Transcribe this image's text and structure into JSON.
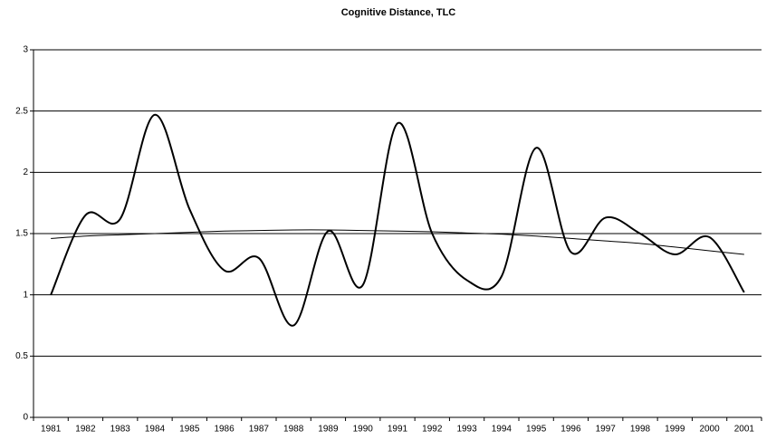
{
  "chart_data": {
    "type": "line",
    "title": "Cognitive Distance, TLC",
    "categories": [
      "1981",
      "1982",
      "1983",
      "1984",
      "1985",
      "1986",
      "1987",
      "1988",
      "1989",
      "1990",
      "1991",
      "1992",
      "1993",
      "1994",
      "1995",
      "1996",
      "1997",
      "1998",
      "1999",
      "2000",
      "2001"
    ],
    "series": [
      {
        "color": "#000000",
        "values": [
          1.0,
          1.65,
          1.62,
          2.47,
          1.7,
          1.2,
          1.3,
          0.75,
          1.52,
          1.08,
          2.4,
          1.5,
          1.12,
          1.15,
          2.2,
          1.35,
          1.63,
          1.5,
          1.33,
          1.47,
          1.02
        ]
      },
      {
        "color": "#000000",
        "values": [
          1.46,
          1.48,
          1.49,
          1.5,
          1.51,
          1.52,
          1.525,
          1.53,
          1.53,
          1.525,
          1.52,
          1.515,
          1.505,
          1.495,
          1.48,
          1.46,
          1.44,
          1.42,
          1.39,
          1.36,
          1.33
        ]
      }
    ],
    "ylim": [
      0,
      3
    ],
    "yticks": [
      0,
      0.5,
      1,
      1.5,
      2,
      2.5,
      3
    ],
    "grid": true
  }
}
